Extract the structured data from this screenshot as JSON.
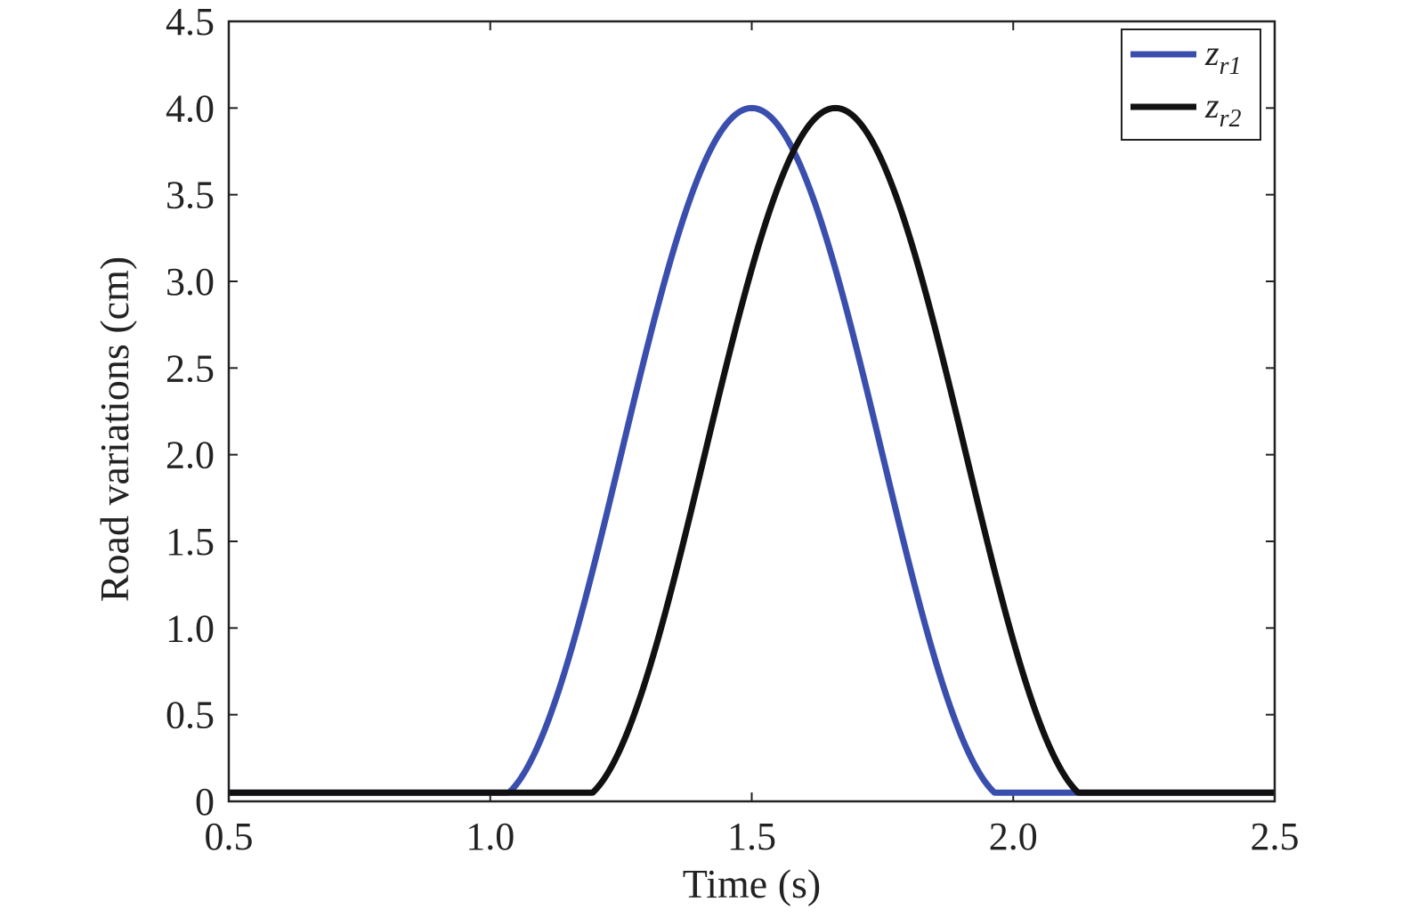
{
  "chart_data": {
    "type": "line",
    "title": "",
    "xlabel": "Time (s)",
    "ylabel": "Road variations (cm)",
    "xlim": [
      0.5,
      2.5
    ],
    "ylim": [
      0,
      4.5
    ],
    "xticks": [
      0.5,
      1.0,
      1.5,
      2.0,
      2.5
    ],
    "xtick_labels": [
      "0.5",
      "1.0",
      "1.5",
      "2.0",
      "2.5"
    ],
    "yticks": [
      0,
      0.5,
      1.0,
      1.5,
      2.0,
      2.5,
      3.0,
      3.5,
      4.0,
      4.5
    ],
    "ytick_labels": [
      "0",
      "0.5",
      "1.0",
      "1.5",
      "2.0",
      "2.5",
      "3.0",
      "3.5",
      "4.0",
      "4.5"
    ],
    "grid": false,
    "legend_position": "top-right",
    "series": [
      {
        "name": "z_r1",
        "legend_main": "z",
        "legend_sub": "r1",
        "color": "#3a4fad",
        "baseline": 0.05,
        "peak": 4.0,
        "start": 1.0,
        "end": 2.0
      },
      {
        "name": "z_r2",
        "legend_main": "z",
        "legend_sub": "r2",
        "color": "#111111",
        "baseline": 0.05,
        "peak": 4.0,
        "start": 1.16,
        "end": 2.16
      }
    ]
  }
}
